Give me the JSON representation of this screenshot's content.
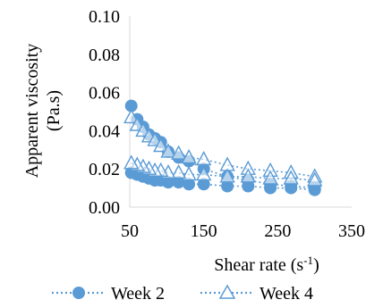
{
  "chart_data": {
    "type": "scatter",
    "title": "",
    "ylabel_line1": "Apparent viscosity",
    "ylabel_line2": "(Pa.s)",
    "xlabel": "Shear rate (s",
    "xlabel_sup": "-1",
    "xlabel_tail": ")",
    "xlim": [
      50,
      350
    ],
    "ylim": [
      0,
      0.1
    ],
    "xticks": [
      50,
      150,
      250,
      350
    ],
    "xtick_labels": [
      "50",
      "150",
      "250",
      "350"
    ],
    "yticks": [
      0,
      0.02,
      0.04,
      0.06,
      0.08,
      0.1
    ],
    "ytick_labels": [
      "0.00",
      "0.02",
      "0.04",
      "0.06",
      "0.08",
      "0.10"
    ],
    "grid": false,
    "legend_position": "bottom",
    "series": [
      {
        "name": "Week 2",
        "marker": "circle",
        "color": "#5B9BD5",
        "line": "dotted",
        "x": [
          52,
          60,
          68,
          76,
          84,
          92,
          102,
          116,
          130,
          150,
          182,
          210,
          240,
          268,
          300,
          300,
          268,
          240,
          210,
          182,
          150,
          130,
          116,
          102,
          92,
          84,
          76,
          68,
          60,
          52
        ],
        "y": [
          0.053,
          0.046,
          0.042,
          0.038,
          0.036,
          0.034,
          0.029,
          0.026,
          0.024,
          0.02,
          0.016,
          0.014,
          0.012,
          0.011,
          0.01,
          0.009,
          0.01,
          0.01,
          0.011,
          0.011,
          0.012,
          0.012,
          0.013,
          0.013,
          0.014,
          0.014,
          0.015,
          0.016,
          0.017,
          0.018
        ]
      },
      {
        "name": "Week 4",
        "marker": "triangle-open",
        "color": "#5B9BD5",
        "line": "dotted",
        "x": [
          52,
          60,
          68,
          76,
          84,
          92,
          102,
          116,
          130,
          150,
          182,
          210,
          240,
          268,
          300,
          300,
          268,
          240,
          210,
          182,
          150,
          130,
          116,
          102,
          92,
          84,
          76,
          68,
          60,
          52
        ],
        "y": [
          0.047,
          0.043,
          0.04,
          0.037,
          0.035,
          0.032,
          0.029,
          0.028,
          0.026,
          0.025,
          0.022,
          0.02,
          0.019,
          0.018,
          0.016,
          0.014,
          0.015,
          0.015,
          0.016,
          0.016,
          0.017,
          0.017,
          0.018,
          0.018,
          0.019,
          0.019,
          0.02,
          0.021,
          0.022,
          0.023
        ]
      }
    ]
  }
}
